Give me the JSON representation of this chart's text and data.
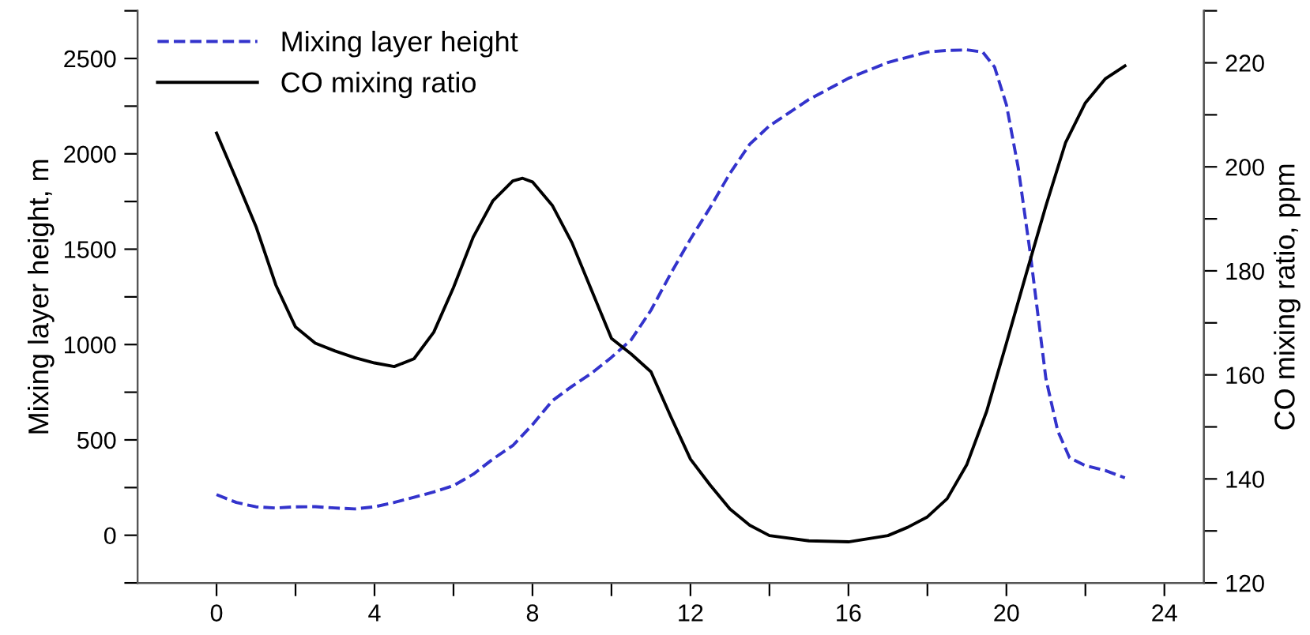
{
  "chart_data": {
    "type": "line",
    "ylabel": "Mixing layer height, m",
    "y2label": "CO mixing ratio, ppm",
    "legend": "top left",
    "grid": false,
    "xlim": [
      -2,
      25
    ],
    "xticks": [
      0,
      {
        "value": 2,
        "label": null
      },
      4,
      {
        "value": 6,
        "label": null
      },
      8,
      {
        "value": 10,
        "label": null
      },
      12,
      {
        "value": 14,
        "label": null
      },
      16,
      {
        "value": 18,
        "label": null
      },
      20,
      {
        "value": 22,
        "label": null
      },
      24
    ],
    "ylim": [
      -250,
      2750
    ],
    "yticks": [
      {
        "value": -250,
        "label": null
      },
      0,
      {
        "value": 250,
        "label": null
      },
      500,
      {
        "value": 750,
        "label": null
      },
      1000,
      {
        "value": 1250,
        "label": null
      },
      1500,
      {
        "value": 1750,
        "label": null
      },
      2000,
      {
        "value": 2250,
        "label": null
      },
      2500,
      {
        "value": 2750,
        "label": null
      }
    ],
    "y2lim": [
      120,
      230
    ],
    "y2ticks": [
      120,
      {
        "value": 130,
        "label": null
      },
      140,
      {
        "value": 150,
        "label": null
      },
      160,
      {
        "value": 170,
        "label": null
      },
      180,
      {
        "value": 190,
        "label": null
      },
      200,
      {
        "value": 210,
        "label": null
      },
      220,
      {
        "value": 230,
        "label": null
      }
    ],
    "series": [
      {
        "name": "Mixing layer height",
        "color": "#3333cc",
        "line_style": "dashed",
        "x": [
          0,
          0.5,
          1,
          1.5,
          2,
          2.5,
          3,
          3.5,
          4,
          4.5,
          5,
          5.5,
          6,
          6.5,
          7,
          7.5,
          8,
          8.5,
          9,
          9.5,
          10,
          10.5,
          11,
          11.5,
          12,
          12.5,
          13,
          13.5,
          14,
          15,
          16,
          17,
          18,
          18.5,
          19,
          19.4,
          19.7,
          20,
          20.3,
          20.6,
          21,
          21.3,
          21.6,
          22,
          22.5,
          23
        ],
        "values": [
          213,
          172,
          149,
          143,
          149,
          150,
          143,
          138,
          149,
          172,
          199,
          227,
          260,
          320,
          400,
          470,
          580,
          705,
          781,
          850,
          933,
          1025,
          1180,
          1372,
          1553,
          1719,
          1898,
          2050,
          2147,
          2285,
          2396,
          2479,
          2534,
          2542,
          2545,
          2534,
          2455,
          2257,
          1926,
          1484,
          821,
          547,
          406,
          365,
          340,
          301
        ]
      },
      {
        "name": "CO mixing ratio",
        "color": "#000000",
        "line_style": "solid",
        "axis": "y2",
        "x": [
          0,
          0.5,
          1,
          1.5,
          2,
          2.5,
          3,
          3.5,
          4,
          4.5,
          5,
          5.5,
          6,
          6.5,
          7,
          7.5,
          7.75,
          8,
          8.5,
          9,
          9.5,
          10,
          10.5,
          11,
          11.5,
          12,
          12.5,
          13,
          13.5,
          14,
          15,
          16,
          17,
          17.5,
          18,
          18.5,
          19,
          19.5,
          20,
          20.5,
          21,
          21.5,
          22,
          22.5,
          23
        ],
        "values": [
          206.5,
          197.6,
          188.5,
          177.3,
          169.2,
          166.1,
          164.6,
          163.3,
          162.3,
          161.6,
          163.1,
          168.2,
          176.8,
          186.5,
          193.5,
          197.3,
          197.8,
          197.1,
          192.6,
          185.4,
          176.2,
          167,
          164,
          160.6,
          152,
          143.8,
          138.8,
          134.2,
          131.1,
          129.1,
          128.1,
          127.9,
          129.1,
          130.7,
          132.7,
          136.2,
          142.8,
          153,
          166.1,
          179.4,
          192.5,
          204.7,
          212.3,
          216.9,
          219.4
        ]
      }
    ]
  }
}
